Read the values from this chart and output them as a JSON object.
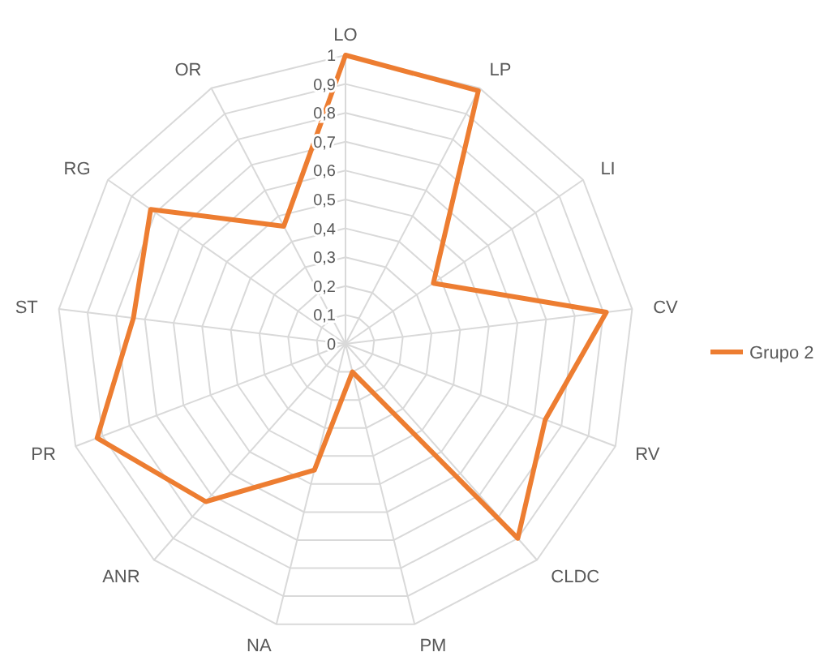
{
  "chart_data": {
    "type": "radar",
    "categories": [
      "LO",
      "LP",
      "LI",
      "CV",
      "RV",
      "CLDC",
      "PM",
      "NA",
      "ANR",
      "PR",
      "ST",
      "RG",
      "OR"
    ],
    "series": [
      {
        "name": "Grupo 2",
        "color": "#ed7d31",
        "values": [
          1,
          0.99,
          0.37,
          0.91,
          0.74,
          0.9,
          0.1,
          0.45,
          0.73,
          0.92,
          0.74,
          0.82,
          0.46
        ]
      }
    ],
    "ylim": [
      0,
      1
    ],
    "yticks": [
      0,
      {
        "value": 0.1,
        "label": "0,1"
      },
      {
        "value": 0.2,
        "label": "0,2"
      },
      {
        "value": 0.3,
        "label": "0,3"
      },
      {
        "value": 0.4,
        "label": "0,4"
      },
      {
        "value": 0.5,
        "label": "0,5"
      },
      {
        "value": 0.6,
        "label": "0,6"
      },
      {
        "value": 0.7,
        "label": "0,7"
      },
      {
        "value": 0.8,
        "label": "0,8"
      },
      {
        "value": 0.9,
        "label": "0,9"
      },
      1
    ],
    "grid": true,
    "legend": "right",
    "marker": "none",
    "line_style": "solid"
  }
}
